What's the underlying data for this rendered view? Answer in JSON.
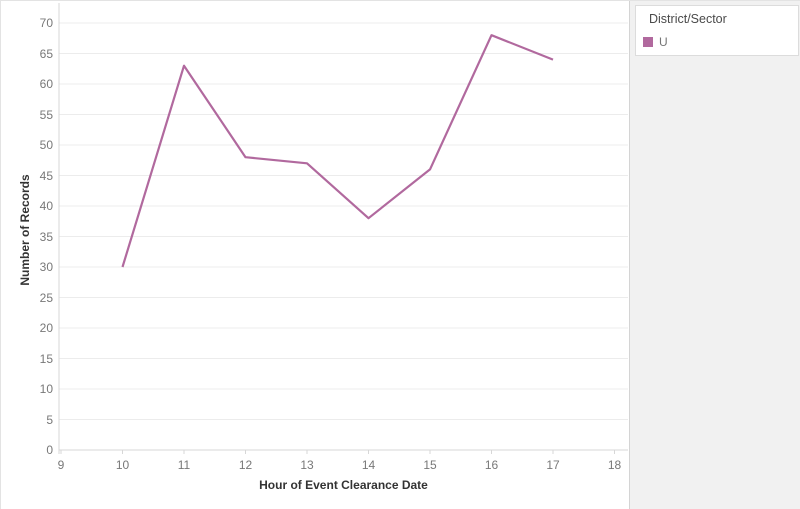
{
  "chart_data": {
    "type": "line",
    "x": [
      10,
      11,
      12,
      13,
      14,
      15,
      16,
      17
    ],
    "series": [
      {
        "name": "U",
        "values": [
          30,
          63,
          48,
          47,
          38,
          46,
          68,
          64
        ]
      }
    ],
    "xlabel": "Hour of Event Clearance Date",
    "ylabel": "Number of Records",
    "xlim": [
      9,
      18
    ],
    "ylim": [
      0,
      70
    ],
    "x_ticks": [
      9,
      10,
      11,
      12,
      13,
      14,
      15,
      16,
      17,
      18
    ],
    "y_ticks": [
      0,
      5,
      10,
      15,
      20,
      25,
      30,
      35,
      40,
      45,
      50,
      55,
      60,
      65,
      70
    ],
    "grid": "horizontal-only",
    "legend_position": "top-right"
  },
  "legend": {
    "title": "District/Sector",
    "items": [
      {
        "label": "U",
        "color": "#b1699e"
      }
    ]
  },
  "colors": {
    "accent": "#b1699e",
    "gridline": "#ececec",
    "axis_line": "#d7d7d7",
    "tick_label": "#787878",
    "axis_title": "#333333",
    "right_pane_bg": "#f1f1f1",
    "legend_border": "#dcdcdc"
  }
}
